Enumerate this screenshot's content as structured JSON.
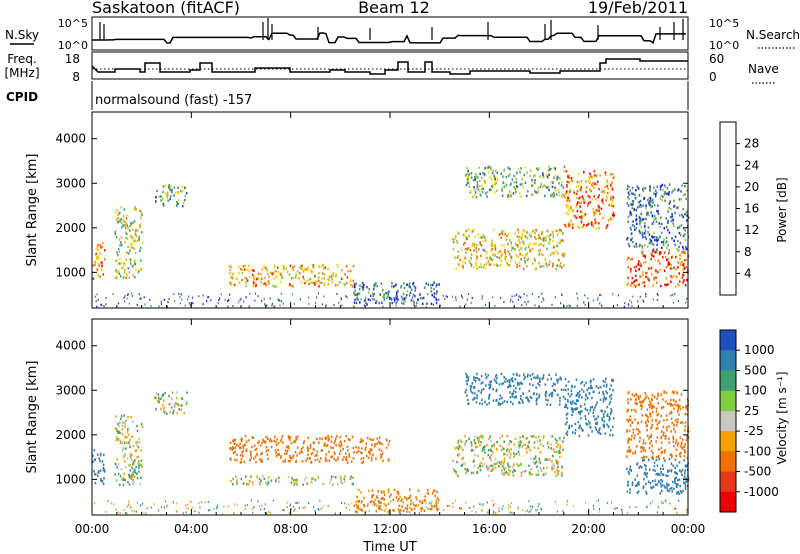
{
  "header": {
    "station": "Saskatoon (fitACF)",
    "beam": "Beam 12",
    "date": "19/Feb/2011"
  },
  "noise_panel": {
    "left_label": "N.Sky",
    "right_label": "N.Search",
    "left_ticks": [
      "10^5",
      "10^0"
    ],
    "right_ticks": [
      "10^5",
      "10^0"
    ]
  },
  "freq_panel": {
    "left_label_line1": "Freq.",
    "left_label_line2": "[MHz]",
    "right_label": "Nave",
    "left_ticks": [
      "18",
      "8"
    ],
    "right_ticks": [
      "60",
      "0"
    ]
  },
  "cpid_panel": {
    "label": "CPID",
    "value": "normalsound (fast) -157"
  },
  "colors": {
    "power_scale": [
      "#1a1aff",
      "#2e4fa6",
      "#3d7f9a",
      "#4fa06e",
      "#9cc840",
      "#f5d800",
      "#f5a800",
      "#f07000",
      "#e83000",
      "#ee0000"
    ],
    "velocity_scale": [
      "#1f4fc0",
      "#2f7fb0",
      "#3f9f6f",
      "#7fcf3f",
      "#c8c8c0",
      "#f0a000",
      "#f07000",
      "#e83818",
      "#ee0000"
    ],
    "ground_scatter": "#bebebe"
  },
  "chart_data": [
    {
      "type": "heatmap",
      "title": "",
      "parameter": "Power",
      "xlabel": "",
      "ylabel": "Slant Range [km]",
      "colorbar_label": "Power [dB]",
      "colorbar_ticks": [
        "4",
        "8",
        "12",
        "16",
        "20",
        "24",
        "28"
      ],
      "colorbar_range": [
        0,
        32
      ],
      "xlim_hours": [
        0,
        24
      ],
      "ylim_km": [
        200,
        4600
      ],
      "x_ticks": [
        "00:00",
        "04:00",
        "08:00",
        "12:00",
        "16:00",
        "20:00",
        "00:00"
      ],
      "y_ticks": [
        "1000",
        "2000",
        "3000",
        "4000"
      ],
      "echo_regions": [
        {
          "t": [
            0.0,
            0.5
          ],
          "range": [
            800,
            1700
          ],
          "value": 22
        },
        {
          "t": [
            0.9,
            2.0
          ],
          "range": [
            900,
            2500
          ],
          "value": 16
        },
        {
          "t": [
            2.5,
            3.8
          ],
          "range": [
            2500,
            3000
          ],
          "value": 12
        },
        {
          "t": [
            5.5,
            10.5
          ],
          "range": [
            700,
            1200
          ],
          "value": 20
        },
        {
          "t": [
            10.5,
            14.0
          ],
          "range": [
            300,
            800
          ],
          "value": 8
        },
        {
          "t": [
            14.5,
            19.0
          ],
          "range": [
            1100,
            2000
          ],
          "value": 18
        },
        {
          "t": [
            15.0,
            19.0
          ],
          "range": [
            2700,
            3400
          ],
          "value": 12
        },
        {
          "t": [
            19.0,
            21.0
          ],
          "range": [
            2000,
            3300
          ],
          "value": 24
        },
        {
          "t": [
            21.5,
            24.0
          ],
          "range": [
            700,
            1500
          ],
          "value": 26
        },
        {
          "t": [
            21.5,
            24.0
          ],
          "range": [
            1500,
            3000
          ],
          "value": 8
        }
      ]
    },
    {
      "type": "heatmap",
      "title": "",
      "parameter": "Velocity",
      "xlabel": "Time UT",
      "ylabel": "Slant Range [km]",
      "colorbar_label": "Velocity [m s⁻¹]",
      "colorbar_ticks": [
        "1000",
        "500",
        "100",
        "25",
        "-25",
        "-100",
        "-500",
        "-1000"
      ],
      "colorbar_range": [
        -1000,
        1000
      ],
      "xlim_hours": [
        0,
        24
      ],
      "ylim_km": [
        200,
        4600
      ],
      "x_ticks": [
        "00:00",
        "04:00",
        "08:00",
        "12:00",
        "16:00",
        "20:00",
        "00:00"
      ],
      "y_ticks": [
        "1000",
        "2000",
        "3000",
        "4000"
      ],
      "echo_regions": [
        {
          "t": [
            0.0,
            0.5
          ],
          "range": [
            900,
            1700
          ],
          "value": 300
        },
        {
          "t": [
            0.9,
            2.0
          ],
          "range": [
            900,
            2500
          ],
          "value": 0
        },
        {
          "t": [
            2.5,
            3.8
          ],
          "range": [
            2500,
            3000
          ],
          "value": 0
        },
        {
          "t": [
            5.5,
            10.5
          ],
          "range": [
            900,
            1100
          ],
          "value": 0
        },
        {
          "t": [
            5.5,
            12.0
          ],
          "range": [
            1400,
            2000
          ],
          "value": -300
        },
        {
          "t": [
            10.5,
            14.0
          ],
          "range": [
            300,
            800
          ],
          "value": -150
        },
        {
          "t": [
            14.5,
            19.0
          ],
          "range": [
            1100,
            2000
          ],
          "value": 0
        },
        {
          "t": [
            15.0,
            19.0
          ],
          "range": [
            2700,
            3400
          ],
          "value": 200
        },
        {
          "t": [
            19.0,
            21.0
          ],
          "range": [
            2000,
            3300
          ],
          "value": 200
        },
        {
          "t": [
            21.5,
            24.0
          ],
          "range": [
            700,
            1500
          ],
          "value": 300
        },
        {
          "t": [
            21.5,
            24.0
          ],
          "range": [
            1500,
            3000
          ],
          "value": -300
        }
      ]
    }
  ]
}
